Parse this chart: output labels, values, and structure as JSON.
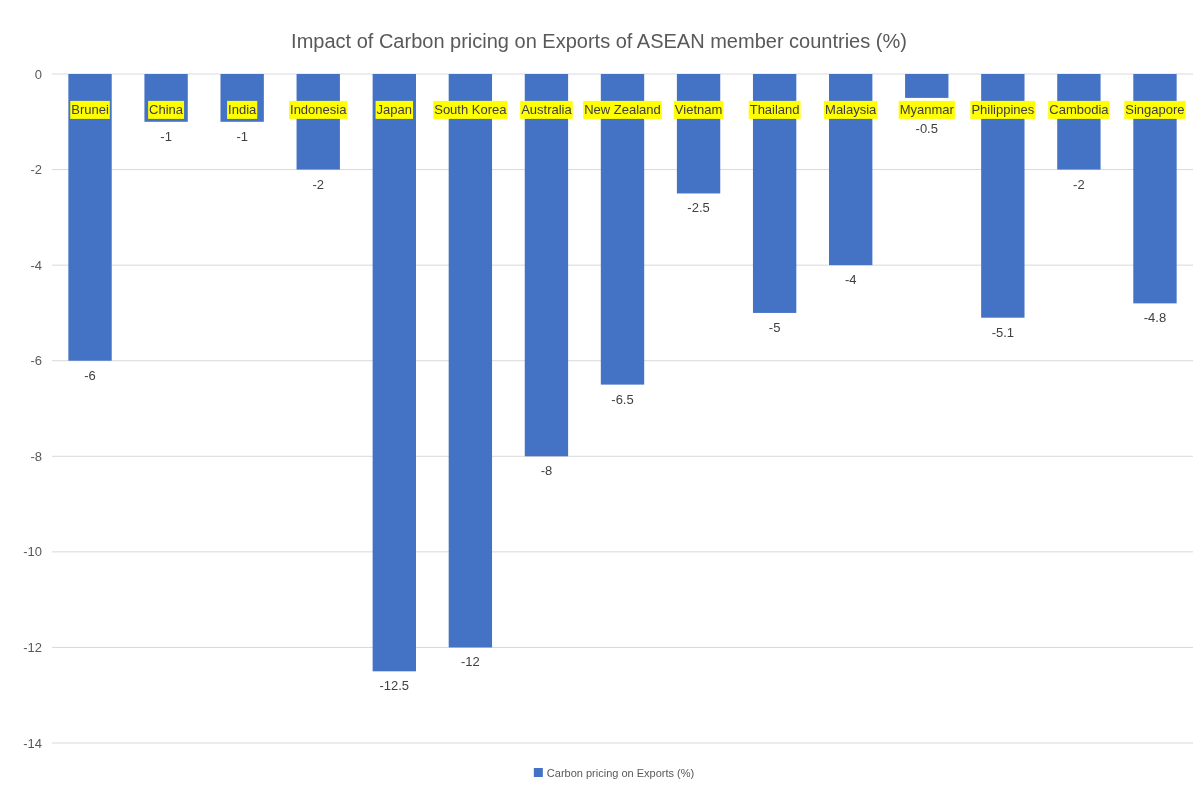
{
  "chart_data": {
    "type": "bar",
    "title": "Impact of Carbon pricing on Exports of ASEAN member countries (%)",
    "categories": [
      "Brunei",
      "China",
      "India",
      "Indonesia",
      "Japan",
      "South Korea",
      "Australia",
      "New Zealand",
      "Vietnam",
      "Thailand",
      "Malaysia",
      "Myanmar",
      "Philippines",
      "Cambodia",
      "Singapore"
    ],
    "series": [
      {
        "name": "Carbon pricing on Exports (%)",
        "color": "#4472c4",
        "values": [
          -6,
          -1,
          -1,
          -2,
          -12.5,
          -12,
          -8,
          -6.5,
          -2.5,
          -5,
          -4,
          -0.5,
          -5.1,
          -2,
          -4.8
        ]
      }
    ],
    "ylim": [
      -14,
      0
    ],
    "yticks": [
      0,
      -2,
      -4,
      -6,
      -8,
      -10,
      -12,
      -14
    ],
    "grid": "y",
    "legend": "bottom",
    "data_labels": true
  }
}
